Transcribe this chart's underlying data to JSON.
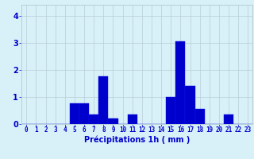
{
  "hours": [
    0,
    1,
    2,
    3,
    4,
    5,
    6,
    7,
    8,
    9,
    10,
    11,
    12,
    13,
    14,
    15,
    16,
    17,
    18,
    19,
    20,
    21,
    22,
    23
  ],
  "values": [
    0,
    0,
    0,
    0,
    0,
    0.75,
    0.75,
    0.35,
    1.75,
    0.2,
    0,
    0.35,
    0,
    0,
    0,
    1.0,
    3.05,
    1.4,
    0.55,
    0,
    0,
    0.35,
    0,
    0
  ],
  "bar_color": "#0000cc",
  "bar_edge_color": "#1111ee",
  "background_color": "#d8f0f8",
  "grid_color": "#b8cdd8",
  "xlabel": "Précipitations 1h ( mm )",
  "ylim": [
    0,
    4.4
  ],
  "xlim": [
    -0.5,
    23.5
  ],
  "yticks": [
    0,
    1,
    2,
    3,
    4
  ],
  "tick_color": "#0000cc",
  "tick_fontsize": 5.5,
  "label_fontsize": 7
}
